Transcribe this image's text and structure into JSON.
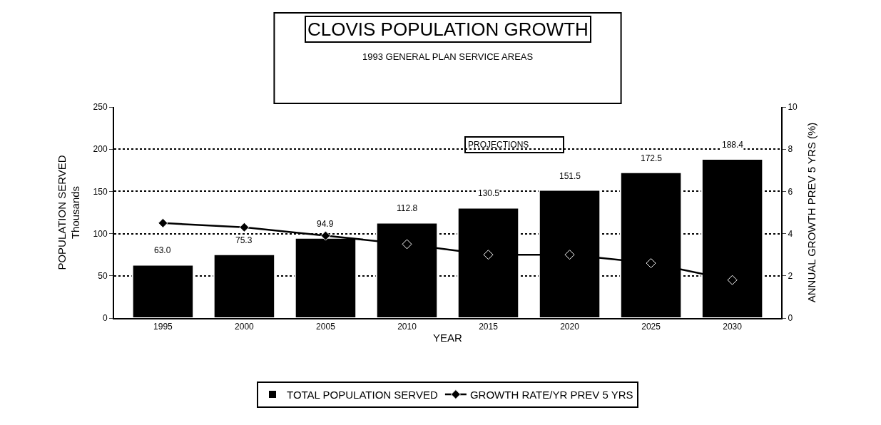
{
  "chart_data": {
    "type": "bar",
    "title": "CLOVIS POPULATION GROWTH",
    "subtitle": "1993 GENERAL PLAN SERVICE AREAS",
    "xlabel": "YEAR",
    "ylabel": "POPULATION SERVED\nThousands",
    "y2label": "ANNUAL GROWTH PREV 5 YRS (%)",
    "categories": [
      "1995",
      "2000",
      "2005",
      "2010",
      "2015",
      "2020",
      "2025",
      "2030"
    ],
    "series": [
      {
        "name": "TOTAL POPULATION SERVED",
        "color": "#000000",
        "values": [
          63.0,
          75.3,
          94.9,
          112.8,
          130.5,
          151.5,
          172.5,
          188.4
        ],
        "value_labels": [
          "63.0",
          "75.3",
          "94.9",
          "112.8",
          "130.5",
          "151.5",
          "172.5",
          "188.4"
        ]
      },
      {
        "name": "GROWTH RATE/YR PREV 5 YRS",
        "type": "line",
        "axis": "y2",
        "color": "#000000",
        "marker": "diamond",
        "values": [
          4.5,
          4.3,
          3.9,
          3.5,
          3.0,
          3.0,
          2.6,
          1.8
        ]
      }
    ],
    "annotations": [
      "PROJECTIONS"
    ],
    "ylim": [
      0,
      250
    ],
    "yticks": [
      0,
      50,
      100,
      150,
      200,
      250
    ],
    "y2lim": [
      0,
      10
    ],
    "y2ticks": [
      0,
      2,
      4,
      6,
      8,
      10
    ],
    "grid": "y",
    "legend": "bottom"
  }
}
